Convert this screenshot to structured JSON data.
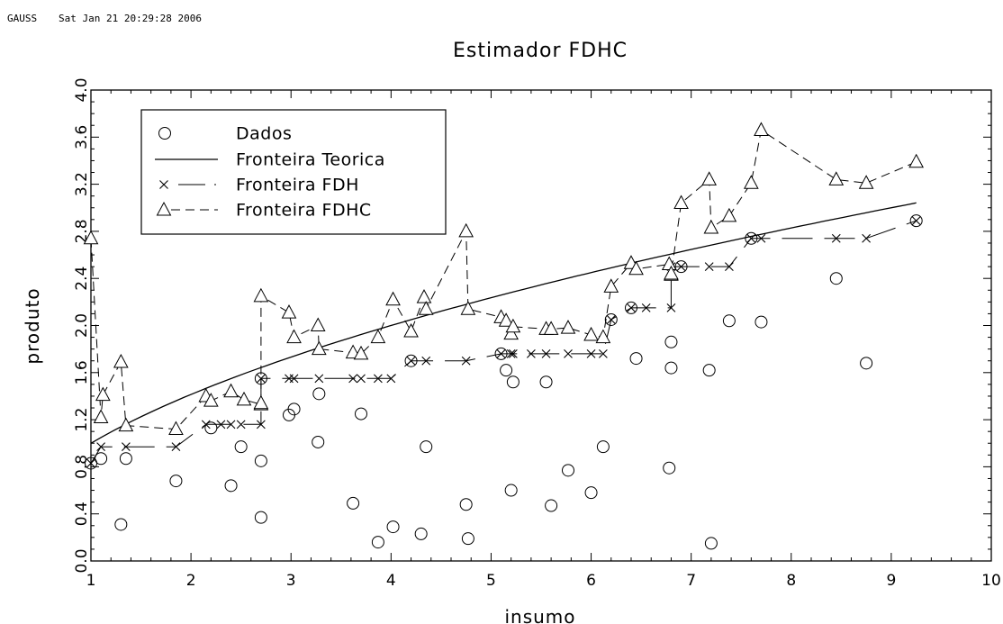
{
  "header": {
    "program": "GAUSS",
    "timestamp": "Sat Jan 21 20:29:28 2006"
  },
  "chart_data": {
    "type": "line",
    "title": "Estimador FDHC",
    "xlabel": "insumo",
    "ylabel": "produto",
    "xlim": [
      1,
      10
    ],
    "ylim": [
      0.0,
      4.0
    ],
    "xticks": [
      1,
      2,
      3,
      4,
      5,
      6,
      7,
      8,
      9,
      10
    ],
    "yticks": [
      "0.0",
      "0.4",
      "0.8",
      "1.2",
      "1.6",
      "2.0",
      "2.4",
      "2.8",
      "3.2",
      "3.6",
      "4.0"
    ],
    "legend_position": "top-left",
    "grid": false,
    "series": [
      {
        "name": "Dados",
        "style": "circles",
        "points": [
          [
            1.0,
            0.83
          ],
          [
            1.1,
            0.87
          ],
          [
            1.3,
            0.31
          ],
          [
            1.35,
            0.87
          ],
          [
            1.85,
            0.68
          ],
          [
            2.2,
            1.13
          ],
          [
            2.4,
            0.64
          ],
          [
            2.5,
            0.97
          ],
          [
            2.7,
            0.85
          ],
          [
            2.7,
            0.37
          ],
          [
            2.7,
            1.55
          ],
          [
            2.98,
            1.24
          ],
          [
            3.03,
            1.29
          ],
          [
            3.27,
            1.01
          ],
          [
            3.28,
            1.42
          ],
          [
            3.62,
            0.49
          ],
          [
            3.7,
            1.25
          ],
          [
            3.87,
            0.16
          ],
          [
            4.02,
            0.29
          ],
          [
            4.2,
            1.7
          ],
          [
            4.3,
            0.23
          ],
          [
            4.35,
            0.97
          ],
          [
            4.75,
            0.48
          ],
          [
            4.77,
            0.19
          ],
          [
            5.1,
            1.76
          ],
          [
            5.15,
            1.62
          ],
          [
            5.2,
            0.6
          ],
          [
            5.22,
            1.52
          ],
          [
            5.55,
            1.52
          ],
          [
            5.6,
            0.47
          ],
          [
            5.77,
            0.77
          ],
          [
            6.0,
            0.58
          ],
          [
            6.12,
            0.97
          ],
          [
            6.2,
            2.05
          ],
          [
            6.4,
            2.15
          ],
          [
            6.45,
            1.72
          ],
          [
            6.78,
            0.79
          ],
          [
            6.8,
            1.86
          ],
          [
            6.8,
            1.64
          ],
          [
            6.9,
            2.5
          ],
          [
            7.18,
            1.62
          ],
          [
            7.2,
            0.15
          ],
          [
            7.38,
            2.04
          ],
          [
            7.6,
            2.74
          ],
          [
            7.7,
            2.03
          ],
          [
            8.45,
            2.4
          ],
          [
            8.75,
            1.68
          ],
          [
            9.25,
            2.89
          ]
        ]
      },
      {
        "name": "Fronteira Teorica",
        "style": "solid",
        "function": "x^0.5",
        "x_range": [
          1.0,
          9.25
        ]
      },
      {
        "name": "Fronteira FDH",
        "style": "x-long-dash",
        "points": [
          [
            1.0,
            0.83
          ],
          [
            1.1,
            0.97
          ],
          [
            1.35,
            0.97
          ],
          [
            1.85,
            0.97
          ],
          [
            2.15,
            1.16
          ],
          [
            2.3,
            1.16
          ],
          [
            2.4,
            1.16
          ],
          [
            2.5,
            1.16
          ],
          [
            2.7,
            1.16
          ],
          [
            2.7,
            1.55
          ],
          [
            2.98,
            1.55
          ],
          [
            3.03,
            1.55
          ],
          [
            3.28,
            1.55
          ],
          [
            3.62,
            1.55
          ],
          [
            3.7,
            1.55
          ],
          [
            3.87,
            1.55
          ],
          [
            4.0,
            1.55
          ],
          [
            4.2,
            1.7
          ],
          [
            4.35,
            1.7
          ],
          [
            4.75,
            1.7
          ],
          [
            5.1,
            1.76
          ],
          [
            5.2,
            1.76
          ],
          [
            5.22,
            1.76
          ],
          [
            5.4,
            1.76
          ],
          [
            5.55,
            1.76
          ],
          [
            5.77,
            1.76
          ],
          [
            6.0,
            1.76
          ],
          [
            6.12,
            1.76
          ],
          [
            6.2,
            2.05
          ],
          [
            6.4,
            2.15
          ],
          [
            6.55,
            2.15
          ],
          [
            6.8,
            2.15
          ],
          [
            6.8,
            2.5
          ],
          [
            6.9,
            2.5
          ],
          [
            7.18,
            2.5
          ],
          [
            7.38,
            2.5
          ],
          [
            7.6,
            2.74
          ],
          [
            7.7,
            2.74
          ],
          [
            8.45,
            2.74
          ],
          [
            8.75,
            2.74
          ],
          [
            9.25,
            2.89
          ]
        ]
      },
      {
        "name": "Fronteira FDHC",
        "style": "triangle-dash",
        "points": [
          [
            1.0,
            2.74
          ],
          [
            1.1,
            1.22
          ],
          [
            1.12,
            1.41
          ],
          [
            1.3,
            1.69
          ],
          [
            1.35,
            1.15
          ],
          [
            1.85,
            1.12
          ],
          [
            2.15,
            1.4
          ],
          [
            2.2,
            1.36
          ],
          [
            2.4,
            1.44
          ],
          [
            2.53,
            1.37
          ],
          [
            2.7,
            1.33
          ],
          [
            2.7,
            1.34
          ],
          [
            2.7,
            2.25
          ],
          [
            2.98,
            2.11
          ],
          [
            3.03,
            1.9
          ],
          [
            3.27,
            2.0
          ],
          [
            3.28,
            1.8
          ],
          [
            3.62,
            1.77
          ],
          [
            3.7,
            1.76
          ],
          [
            3.87,
            1.9
          ],
          [
            4.02,
            2.22
          ],
          [
            4.2,
            1.95
          ],
          [
            4.33,
            2.24
          ],
          [
            4.35,
            2.14
          ],
          [
            4.75,
            2.8
          ],
          [
            4.77,
            2.14
          ],
          [
            5.1,
            2.07
          ],
          [
            5.15,
            2.04
          ],
          [
            5.2,
            1.93
          ],
          [
            5.22,
            1.99
          ],
          [
            5.55,
            1.97
          ],
          [
            5.6,
            1.97
          ],
          [
            5.77,
            1.98
          ],
          [
            6.0,
            1.92
          ],
          [
            6.12,
            1.9
          ],
          [
            6.2,
            2.33
          ],
          [
            6.4,
            2.53
          ],
          [
            6.45,
            2.48
          ],
          [
            6.78,
            2.52
          ],
          [
            6.8,
            2.43
          ],
          [
            6.8,
            2.44
          ],
          [
            6.9,
            3.04
          ],
          [
            7.18,
            3.24
          ],
          [
            7.2,
            2.83
          ],
          [
            7.38,
            2.93
          ],
          [
            7.6,
            3.21
          ],
          [
            7.7,
            3.66
          ],
          [
            8.45,
            3.24
          ],
          [
            8.75,
            3.21
          ],
          [
            9.25,
            3.39
          ]
        ]
      }
    ]
  }
}
